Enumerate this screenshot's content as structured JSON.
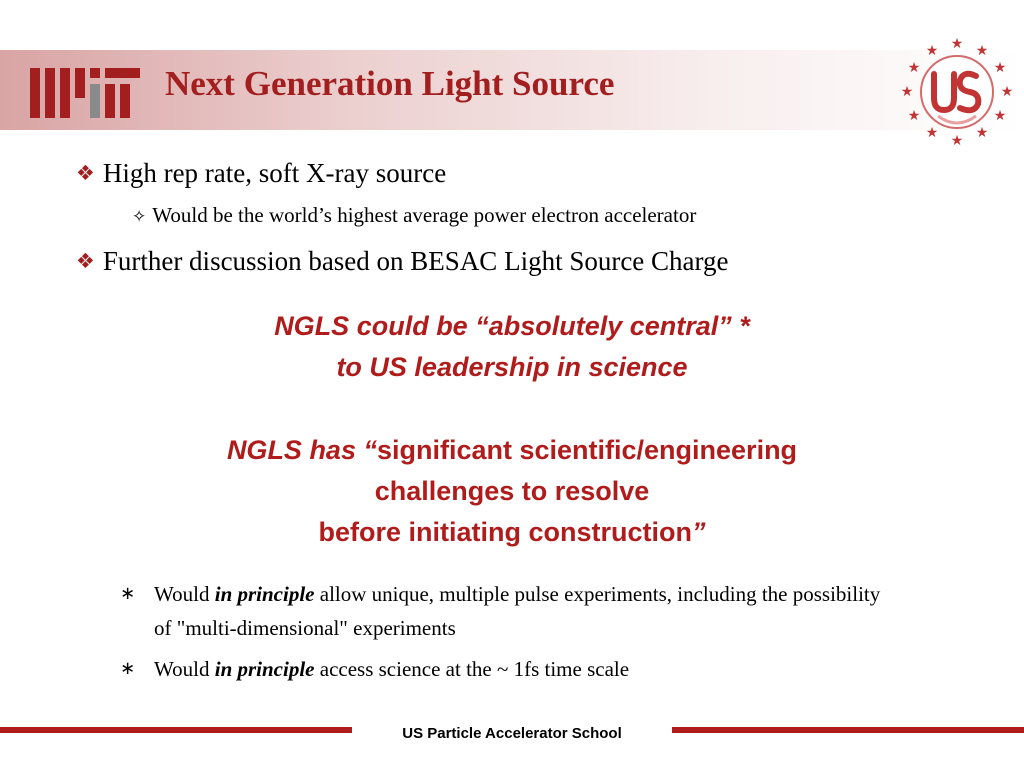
{
  "slide": {
    "title": "Next Generation Light Source",
    "logo_left": "mit-logo",
    "logo_right": "uspas-seal",
    "accent_color": "#a31f1f",
    "bullets": [
      {
        "marker": "❖",
        "text": "High rep rate, soft X-ray source"
      },
      {
        "marker": "✧",
        "text": "Would be the world’s highest average power electron accelerator"
      },
      {
        "marker": "❖",
        "text": "Further discussion based on BESAC Light Source Charge"
      }
    ],
    "quote1": {
      "line1": "NGLS could be “absolutely central” *",
      "line2": "to US leadership in science"
    },
    "quote2": {
      "line1_italic": "NGLS has “",
      "line1_rest": "significant scientific/engineering",
      "line2": "challenges to resolve",
      "line3": "before initiating construction",
      "line3_close": "”"
    },
    "sub_bullets": [
      {
        "marker": "∗",
        "pre": "Would ",
        "em": "in principle",
        "post": " allow unique, multiple pulse experiments, including the possibility of \"multi-dimensional\" experiments"
      },
      {
        "marker": "∗",
        "pre": "Would ",
        "em": "in principle",
        "post": " access science at the ~ 1fs time scale"
      }
    ],
    "footer": "US Particle Accelerator School"
  }
}
